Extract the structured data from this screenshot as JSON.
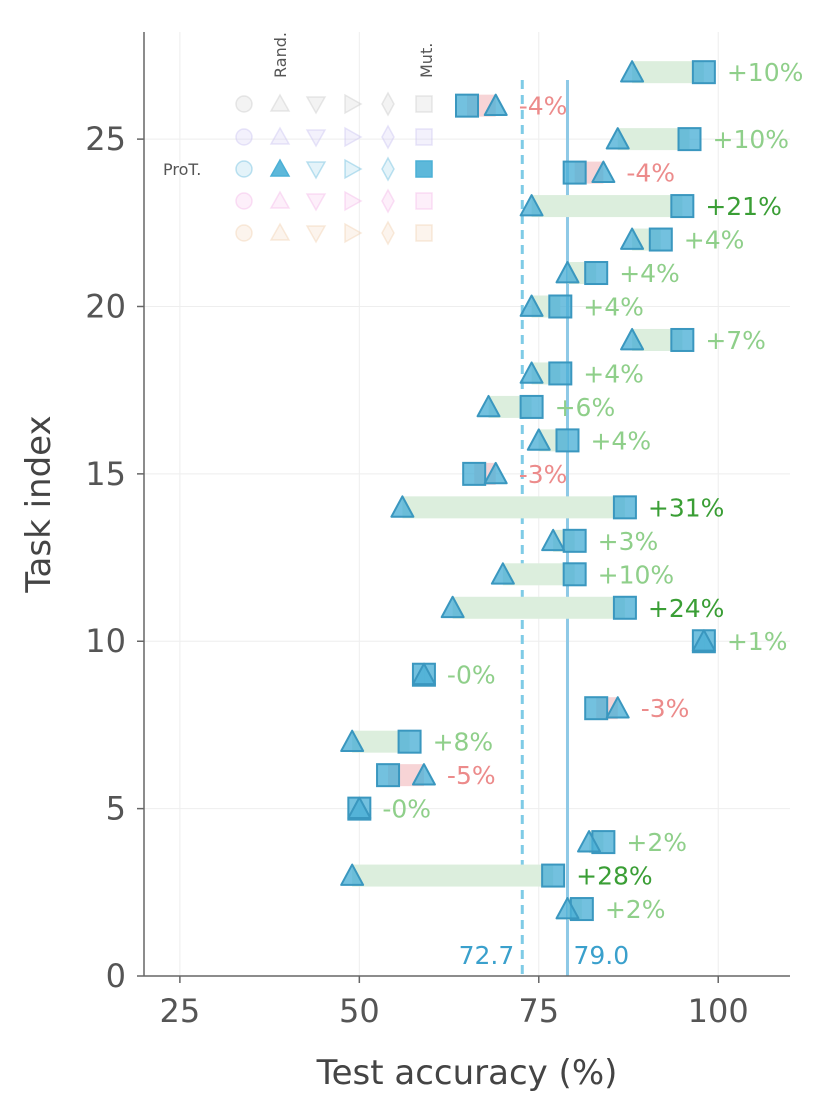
{
  "chart_data": {
    "type": "dumbbell",
    "xlabel": "Test accuracy (%)",
    "ylabel": "Task index",
    "xlim": [
      20,
      110
    ],
    "ylim": [
      0,
      28.2
    ],
    "x_ticks": [
      25,
      50,
      75,
      100
    ],
    "x_tick_labels": [
      "25",
      "50",
      "75",
      "100"
    ],
    "y_ticks": [
      0,
      5,
      10,
      15,
      20,
      25
    ],
    "y_tick_labels": [
      "0",
      "5",
      "10",
      "15",
      "20",
      "25"
    ],
    "grid": true,
    "series": [
      {
        "name": "Rand.",
        "marker": "triangle"
      },
      {
        "name": "Mut.",
        "marker": "square"
      }
    ],
    "reference_lines": [
      {
        "value": 72.7,
        "label": "72.7",
        "style": "dashed"
      },
      {
        "value": 79.0,
        "label": "79.0",
        "style": "solid"
      }
    ],
    "tasks": [
      {
        "index": 2,
        "random": 79,
        "mutated": 81,
        "delta": "+2%"
      },
      {
        "index": 3,
        "random": 49,
        "mutated": 77,
        "delta": "+28%"
      },
      {
        "index": 4,
        "random": 82,
        "mutated": 84,
        "delta": "+2%"
      },
      {
        "index": 5,
        "random": 50,
        "mutated": 50,
        "delta": "-0%"
      },
      {
        "index": 6,
        "random": 59,
        "mutated": 54,
        "delta": "-5%"
      },
      {
        "index": 7,
        "random": 49,
        "mutated": 57,
        "delta": "+8%"
      },
      {
        "index": 8,
        "random": 86,
        "mutated": 83,
        "delta": "-3%"
      },
      {
        "index": 9,
        "random": 59,
        "mutated": 59,
        "delta": "-0%"
      },
      {
        "index": 10,
        "random": 98,
        "mutated": 98,
        "delta": "+1%"
      },
      {
        "index": 11,
        "random": 63,
        "mutated": 87,
        "delta": "+24%"
      },
      {
        "index": 12,
        "random": 70,
        "mutated": 80,
        "delta": "+10%"
      },
      {
        "index": 13,
        "random": 77,
        "mutated": 80,
        "delta": "+3%"
      },
      {
        "index": 14,
        "random": 56,
        "mutated": 87,
        "delta": "+31%"
      },
      {
        "index": 15,
        "random": 69,
        "mutated": 66,
        "delta": "-3%"
      },
      {
        "index": 16,
        "random": 75,
        "mutated": 79,
        "delta": "+4%"
      },
      {
        "index": 17,
        "random": 68,
        "mutated": 74,
        "delta": "+6%"
      },
      {
        "index": 18,
        "random": 74,
        "mutated": 78,
        "delta": "+4%"
      },
      {
        "index": 19,
        "random": 88,
        "mutated": 95,
        "delta": "+7%"
      },
      {
        "index": 20,
        "random": 74,
        "mutated": 78,
        "delta": "+4%"
      },
      {
        "index": 21,
        "random": 79,
        "mutated": 83,
        "delta": "+4%"
      },
      {
        "index": 22,
        "random": 88,
        "mutated": 92,
        "delta": "+4%"
      },
      {
        "index": 23,
        "random": 74,
        "mutated": 95,
        "delta": "+21%"
      },
      {
        "index": 24,
        "random": 84,
        "mutated": 80,
        "delta": "-4%"
      },
      {
        "index": 25,
        "random": 86,
        "mutated": 96,
        "delta": "+10%"
      },
      {
        "index": 26,
        "random": 69,
        "mutated": 65,
        "delta": "-4%"
      },
      {
        "index": 27,
        "random": 88,
        "mutated": 98,
        "delta": "+10%"
      }
    ],
    "legend": {
      "placement": "top-left",
      "column_headers": [
        "Rand.",
        "Mut."
      ],
      "highlighted_row_label": "ProT."
    },
    "colors": {
      "marker": "#4bb0d6",
      "marker_edge": "#3a97bf",
      "positive_bar": "#dceedd",
      "negative_bar": "#f7d4d6",
      "positive_text_strong": "#3a9e35",
      "positive_text_light": "#8fcf8a",
      "negative_text": "#ec8b8b",
      "ref_line_dashed": "#7fcbe6",
      "ref_line_solid": "#8ec9e6",
      "ref_label": "#3aa0cc"
    }
  }
}
